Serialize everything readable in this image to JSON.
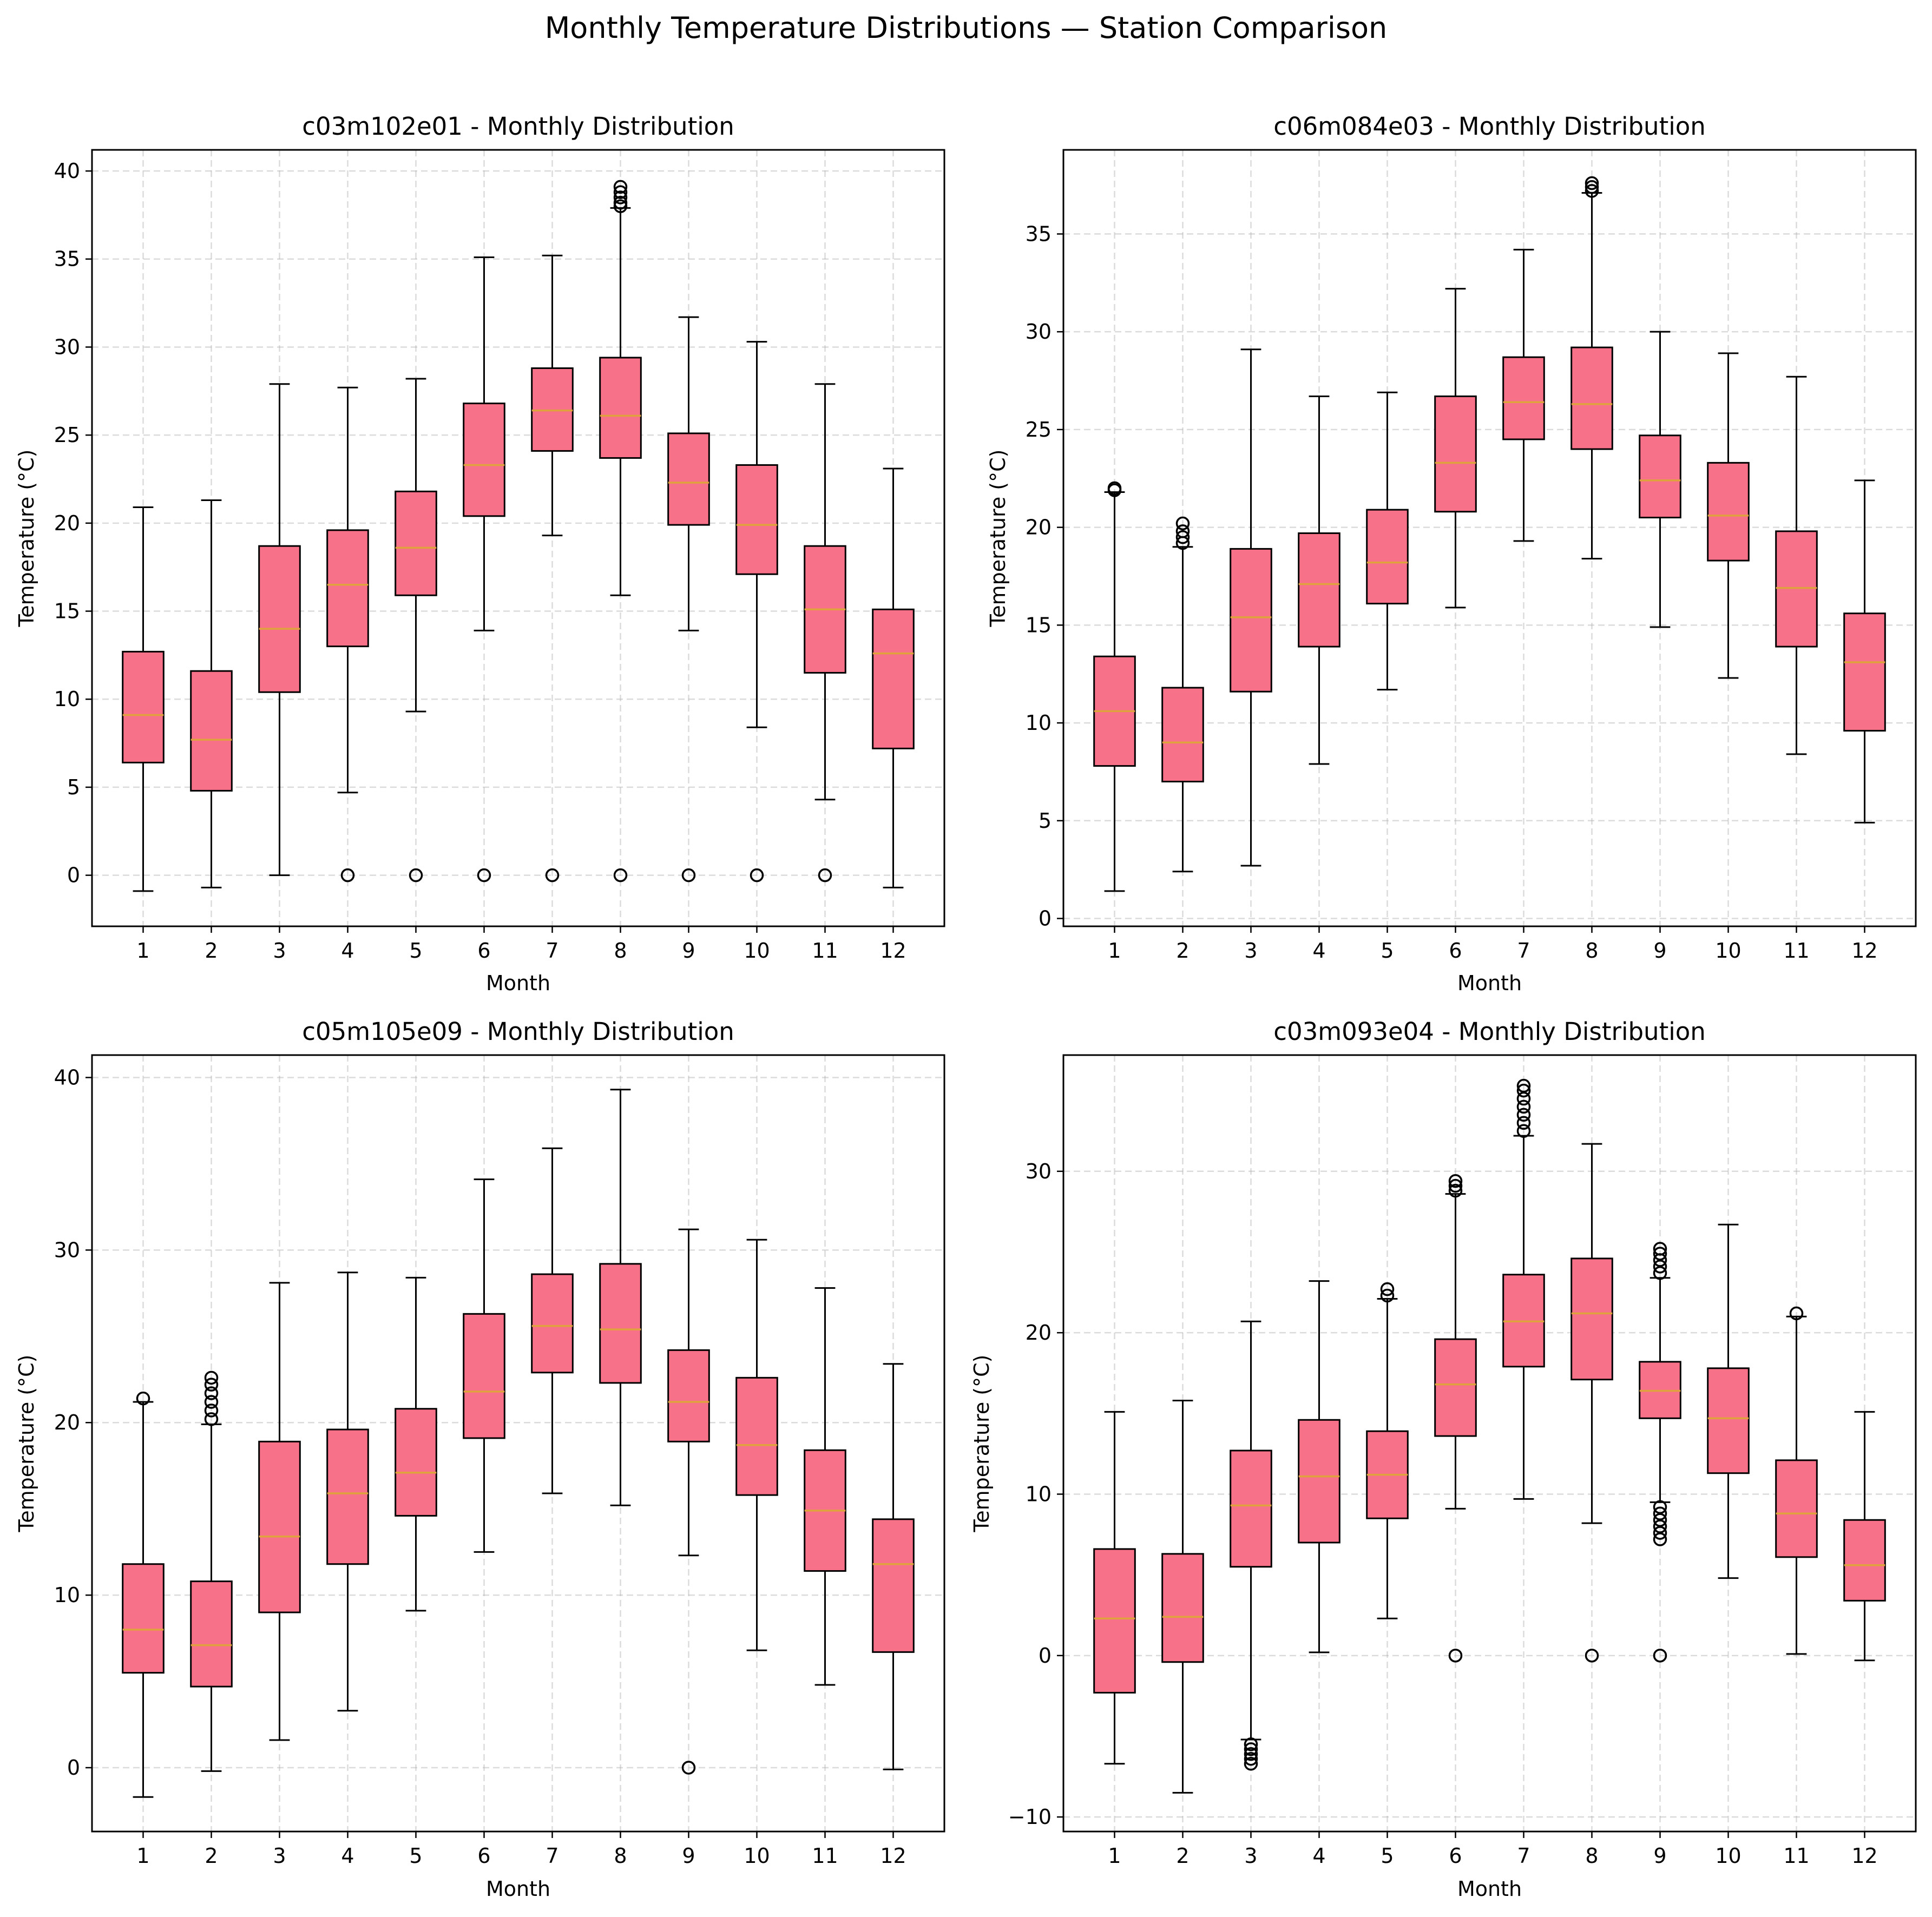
{
  "figure": {
    "suptitle": "Monthly Temperature Distributions — Station Comparison"
  },
  "colors": {
    "box_fill": "#f77189",
    "median": "#e0a23c",
    "grid": "#b0b0b0"
  },
  "chart_data": [
    {
      "type": "box",
      "title": "c03m102e01 - Monthly Distribution",
      "xlabel": "Month",
      "ylabel": "Temperature (°C)",
      "ylim": [
        -2.9,
        41.2
      ],
      "yticks": [
        0,
        5,
        10,
        15,
        20,
        25,
        30,
        35,
        40
      ],
      "categories": [
        "1",
        "2",
        "3",
        "4",
        "5",
        "6",
        "7",
        "8",
        "9",
        "10",
        "11",
        "12"
      ],
      "boxes": [
        {
          "whislo": -0.9,
          "q1": 6.4,
          "med": 9.1,
          "q3": 12.7,
          "whishi": 20.9,
          "fliers": []
        },
        {
          "whislo": -0.7,
          "q1": 4.8,
          "med": 7.7,
          "q3": 11.6,
          "whishi": 21.3,
          "fliers": []
        },
        {
          "whislo": 0.0,
          "q1": 10.4,
          "med": 14.0,
          "q3": 18.7,
          "whishi": 27.9,
          "fliers": []
        },
        {
          "whislo": 4.7,
          "q1": 13.0,
          "med": 16.5,
          "q3": 19.6,
          "whishi": 27.7,
          "fliers": [
            0
          ]
        },
        {
          "whislo": 9.3,
          "q1": 15.9,
          "med": 18.6,
          "q3": 21.8,
          "whishi": 28.2,
          "fliers": [
            0
          ]
        },
        {
          "whislo": 13.9,
          "q1": 20.4,
          "med": 23.3,
          "q3": 26.8,
          "whishi": 35.1,
          "fliers": [
            0
          ]
        },
        {
          "whislo": 19.3,
          "q1": 24.1,
          "med": 26.4,
          "q3": 28.8,
          "whishi": 35.2,
          "fliers": [
            0
          ]
        },
        {
          "whislo": 15.9,
          "q1": 23.7,
          "med": 26.1,
          "q3": 29.4,
          "whishi": 37.9,
          "fliers": [
            0,
            38.0,
            38.2,
            38.5,
            38.8,
            39.1
          ]
        },
        {
          "whislo": 13.9,
          "q1": 19.9,
          "med": 22.3,
          "q3": 25.1,
          "whishi": 31.7,
          "fliers": [
            0
          ]
        },
        {
          "whislo": 8.4,
          "q1": 17.1,
          "med": 19.9,
          "q3": 23.3,
          "whishi": 30.3,
          "fliers": [
            0
          ]
        },
        {
          "whislo": 4.3,
          "q1": 11.5,
          "med": 15.1,
          "q3": 18.7,
          "whishi": 27.9,
          "fliers": [
            0
          ]
        },
        {
          "whislo": -0.7,
          "q1": 7.2,
          "med": 12.6,
          "q3": 15.1,
          "whishi": 23.1,
          "fliers": []
        }
      ]
    },
    {
      "type": "box",
      "title": "c06m084e03 - Monthly Distribution",
      "xlabel": "Month",
      "ylabel": "Temperature (°C)",
      "ylim": [
        -0.4,
        39.3
      ],
      "yticks": [
        0,
        5,
        10,
        15,
        20,
        25,
        30,
        35
      ],
      "categories": [
        "1",
        "2",
        "3",
        "4",
        "5",
        "6",
        "7",
        "8",
        "9",
        "10",
        "11",
        "12"
      ],
      "boxes": [
        {
          "whislo": 1.4,
          "q1": 7.8,
          "med": 10.6,
          "q3": 13.4,
          "whishi": 21.8,
          "fliers": [
            21.9,
            22.0
          ]
        },
        {
          "whislo": 2.4,
          "q1": 7.0,
          "med": 9.0,
          "q3": 11.8,
          "whishi": 19.0,
          "fliers": [
            19.2,
            19.5,
            19.8,
            20.2
          ]
        },
        {
          "whislo": 2.7,
          "q1": 11.6,
          "med": 15.4,
          "q3": 18.9,
          "whishi": 29.1,
          "fliers": []
        },
        {
          "whislo": 7.9,
          "q1": 13.9,
          "med": 17.1,
          "q3": 19.7,
          "whishi": 26.7,
          "fliers": []
        },
        {
          "whislo": 11.7,
          "q1": 16.1,
          "med": 18.2,
          "q3": 20.9,
          "whishi": 26.9,
          "fliers": []
        },
        {
          "whislo": 15.9,
          "q1": 20.8,
          "med": 23.3,
          "q3": 26.7,
          "whishi": 32.2,
          "fliers": []
        },
        {
          "whislo": 19.3,
          "q1": 24.5,
          "med": 26.4,
          "q3": 28.7,
          "whishi": 34.2,
          "fliers": []
        },
        {
          "whislo": 18.4,
          "q1": 24.0,
          "med": 26.3,
          "q3": 29.2,
          "whishi": 37.1,
          "fliers": [
            37.2,
            37.4,
            37.6
          ]
        },
        {
          "whislo": 14.9,
          "q1": 20.5,
          "med": 22.4,
          "q3": 24.7,
          "whishi": 30.0,
          "fliers": []
        },
        {
          "whislo": 12.3,
          "q1": 18.3,
          "med": 20.6,
          "q3": 23.3,
          "whishi": 28.9,
          "fliers": []
        },
        {
          "whislo": 8.4,
          "q1": 13.9,
          "med": 16.9,
          "q3": 19.8,
          "whishi": 27.7,
          "fliers": []
        },
        {
          "whislo": 4.9,
          "q1": 9.6,
          "med": 13.1,
          "q3": 15.6,
          "whishi": 22.4,
          "fliers": []
        }
      ]
    },
    {
      "type": "box",
      "title": "c05m105e09 - Monthly Distribution",
      "xlabel": "Month",
      "ylabel": "Temperature (°C)",
      "ylim": [
        -3.7,
        41.3
      ],
      "yticks": [
        0,
        10,
        20,
        30,
        40
      ],
      "categories": [
        "1",
        "2",
        "3",
        "4",
        "5",
        "6",
        "7",
        "8",
        "9",
        "10",
        "11",
        "12"
      ],
      "boxes": [
        {
          "whislo": -1.7,
          "q1": 5.5,
          "med": 8.0,
          "q3": 11.8,
          "whishi": 21.2,
          "fliers": [
            21.4
          ]
        },
        {
          "whislo": -0.2,
          "q1": 4.7,
          "med": 7.1,
          "q3": 10.8,
          "whishi": 19.9,
          "fliers": [
            20.2,
            20.7,
            21.2,
            21.7,
            22.2,
            22.6
          ]
        },
        {
          "whislo": 1.6,
          "q1": 9.0,
          "med": 13.4,
          "q3": 18.9,
          "whishi": 28.1,
          "fliers": []
        },
        {
          "whislo": 3.3,
          "q1": 11.8,
          "med": 15.9,
          "q3": 19.6,
          "whishi": 28.7,
          "fliers": []
        },
        {
          "whislo": 9.1,
          "q1": 14.6,
          "med": 17.1,
          "q3": 20.8,
          "whishi": 28.4,
          "fliers": []
        },
        {
          "whislo": 12.5,
          "q1": 19.1,
          "med": 21.8,
          "q3": 26.3,
          "whishi": 34.1,
          "fliers": []
        },
        {
          "whislo": 15.9,
          "q1": 22.9,
          "med": 25.6,
          "q3": 28.6,
          "whishi": 35.9,
          "fliers": []
        },
        {
          "whislo": 15.2,
          "q1": 22.3,
          "med": 25.4,
          "q3": 29.2,
          "whishi": 39.3,
          "fliers": []
        },
        {
          "whislo": 12.3,
          "q1": 18.9,
          "med": 21.2,
          "q3": 24.2,
          "whishi": 31.2,
          "fliers": [
            0
          ]
        },
        {
          "whislo": 6.8,
          "q1": 15.8,
          "med": 18.7,
          "q3": 22.6,
          "whishi": 30.6,
          "fliers": []
        },
        {
          "whislo": 4.8,
          "q1": 11.4,
          "med": 14.9,
          "q3": 18.4,
          "whishi": 27.8,
          "fliers": []
        },
        {
          "whislo": -0.1,
          "q1": 6.7,
          "med": 11.8,
          "q3": 14.4,
          "whishi": 23.4,
          "fliers": []
        }
      ]
    },
    {
      "type": "box",
      "title": "c03m093e04 - Monthly Distribution",
      "xlabel": "Month",
      "ylabel": "Temperature (°C)",
      "ylim": [
        -10.9,
        37.2
      ],
      "yticks": [
        -10,
        0,
        10,
        20,
        30
      ],
      "ytick_labels": [
        "−10",
        "0",
        "10",
        "20",
        "30"
      ],
      "categories": [
        "1",
        "2",
        "3",
        "4",
        "5",
        "6",
        "7",
        "8",
        "9",
        "10",
        "11",
        "12"
      ],
      "boxes": [
        {
          "whislo": -6.7,
          "q1": -2.3,
          "med": 2.3,
          "q3": 6.6,
          "whishi": 15.1,
          "fliers": []
        },
        {
          "whislo": -8.5,
          "q1": -0.4,
          "med": 2.4,
          "q3": 6.3,
          "whishi": 15.8,
          "fliers": []
        },
        {
          "whislo": -5.2,
          "q1": 5.5,
          "med": 9.3,
          "q3": 12.7,
          "whishi": 20.7,
          "fliers": [
            -5.5,
            -5.8,
            -6.1,
            -6.4,
            -6.7
          ]
        },
        {
          "whislo": 0.2,
          "q1": 7.0,
          "med": 11.1,
          "q3": 14.6,
          "whishi": 23.2,
          "fliers": []
        },
        {
          "whislo": 2.3,
          "q1": 8.5,
          "med": 11.2,
          "q3": 13.9,
          "whishi": 22.1,
          "fliers": [
            22.3,
            22.7
          ]
        },
        {
          "whislo": 9.1,
          "q1": 13.6,
          "med": 16.8,
          "q3": 19.6,
          "whishi": 28.6,
          "fliers": [
            0,
            28.8,
            29.1,
            29.4
          ]
        },
        {
          "whislo": 9.7,
          "q1": 17.9,
          "med": 20.7,
          "q3": 23.6,
          "whishi": 32.2,
          "fliers": [
            32.5,
            33.0,
            33.5,
            34.0,
            34.5,
            35.0,
            35.3
          ]
        },
        {
          "whislo": 8.2,
          "q1": 17.1,
          "med": 21.2,
          "q3": 24.6,
          "whishi": 31.7,
          "fliers": [
            0
          ]
        },
        {
          "whislo": 9.5,
          "q1": 14.7,
          "med": 16.4,
          "q3": 18.2,
          "whishi": 23.4,
          "fliers": [
            0,
            7.2,
            7.6,
            8.0,
            8.4,
            8.8,
            9.2,
            23.7,
            24.1,
            24.5,
            24.9,
            25.2
          ]
        },
        {
          "whislo": 4.8,
          "q1": 11.3,
          "med": 14.7,
          "q3": 17.8,
          "whishi": 26.7,
          "fliers": []
        },
        {
          "whislo": 0.1,
          "q1": 6.1,
          "med": 8.8,
          "q3": 12.1,
          "whishi": 21.0,
          "fliers": [
            21.2
          ]
        },
        {
          "whislo": -0.3,
          "q1": 3.4,
          "med": 5.6,
          "q3": 8.4,
          "whishi": 15.1,
          "fliers": []
        }
      ]
    }
  ]
}
